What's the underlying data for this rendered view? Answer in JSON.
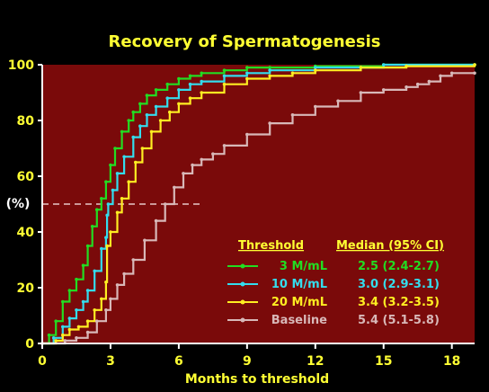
{
  "chart_data": {
    "type": "line",
    "title": "Recovery of Spermatogenesis",
    "xlabel": "Months to threshold",
    "ylabel": "(%)",
    "xlim": [
      0,
      19
    ],
    "ylim": [
      0,
      100
    ],
    "xticks": [
      0,
      3,
      6,
      9,
      12,
      15,
      18
    ],
    "yticks": [
      0,
      20,
      40,
      60,
      80,
      100
    ],
    "grid": false,
    "plot_background": "#7a0a0a",
    "reference_line": {
      "y": 50,
      "x_from": 0,
      "x_to": 7,
      "style": "dashed",
      "color": "#e8c8c8"
    },
    "legend": {
      "placement": "bottom-right",
      "threshold_header": "Threshold",
      "median_header": "Median (95% CI)"
    },
    "series": [
      {
        "name": "3 M/mL",
        "median": "2.5 (2.4-2.7)",
        "color": "#22dd22",
        "x": [
          0,
          0.3,
          0.6,
          0.9,
          1.2,
          1.5,
          1.8,
          2.0,
          2.2,
          2.4,
          2.6,
          2.8,
          3.0,
          3.2,
          3.5,
          3.8,
          4.0,
          4.3,
          4.6,
          5.0,
          5.5,
          6.0,
          6.5,
          7.0,
          8.0,
          9.0,
          10.0,
          12.0,
          15.0,
          19.0
        ],
        "y": [
          0,
          3,
          8,
          15,
          19,
          23,
          28,
          35,
          42,
          48,
          52,
          58,
          64,
          70,
          76,
          80,
          83,
          86,
          89,
          91,
          93,
          95,
          96,
          97,
          98,
          99,
          99,
          99.5,
          100,
          100
        ]
      },
      {
        "name": "10 M/mL",
        "median": "3.0 (2.9-3.1)",
        "color": "#33ddee",
        "x": [
          0,
          0.5,
          0.9,
          1.2,
          1.5,
          1.8,
          2.0,
          2.3,
          2.6,
          2.8,
          2.85,
          2.9,
          3.1,
          3.3,
          3.6,
          4.0,
          4.3,
          4.6,
          5.0,
          5.5,
          6.0,
          6.5,
          7.0,
          8.0,
          9.0,
          10.0,
          12.0,
          15.0,
          19.0
        ],
        "y": [
          0,
          2,
          6,
          9,
          12,
          15,
          19,
          26,
          34,
          38,
          46,
          50,
          55,
          61,
          67,
          74,
          78,
          82,
          85,
          88,
          91,
          93,
          94,
          96,
          97,
          98,
          99,
          100,
          100
        ]
      },
      {
        "name": "20 M/mL",
        "median": "3.4 (3.2-3.5)",
        "color": "#ffee22",
        "x": [
          0,
          0.6,
          0.9,
          1.2,
          1.6,
          2.0,
          2.3,
          2.6,
          2.8,
          2.85,
          3.0,
          3.3,
          3.5,
          3.8,
          4.1,
          4.4,
          4.8,
          5.2,
          5.6,
          6.0,
          6.5,
          7.0,
          8.0,
          9.0,
          10.0,
          11.0,
          12.0,
          14.0,
          16.0,
          19.0
        ],
        "y": [
          0,
          1,
          3,
          5,
          6,
          8,
          12,
          16,
          22,
          35,
          40,
          47,
          52,
          58,
          65,
          70,
          76,
          80,
          83,
          86,
          88,
          90,
          93,
          95,
          96,
          97,
          98,
          99,
          99.5,
          100
        ]
      },
      {
        "name": "Baseline",
        "median": "5.4 (5.1-5.8)",
        "color": "#d8b8b8",
        "x": [
          0,
          1.0,
          1.5,
          2.0,
          2.4,
          2.8,
          3.0,
          3.3,
          3.6,
          4.0,
          4.5,
          5.0,
          5.4,
          5.8,
          6.2,
          6.6,
          7.0,
          7.5,
          8.0,
          9.0,
          10.0,
          11.0,
          12.0,
          13.0,
          14.0,
          15.0,
          16.0,
          16.5,
          17.0,
          17.5,
          18.0,
          19.0
        ],
        "y": [
          0,
          1,
          2,
          4,
          8,
          12,
          16,
          21,
          25,
          30,
          37,
          44,
          50,
          56,
          61,
          64,
          66,
          68,
          71,
          75,
          79,
          82,
          85,
          87,
          90,
          91,
          92,
          93,
          94,
          96,
          97,
          97
        ]
      }
    ]
  }
}
